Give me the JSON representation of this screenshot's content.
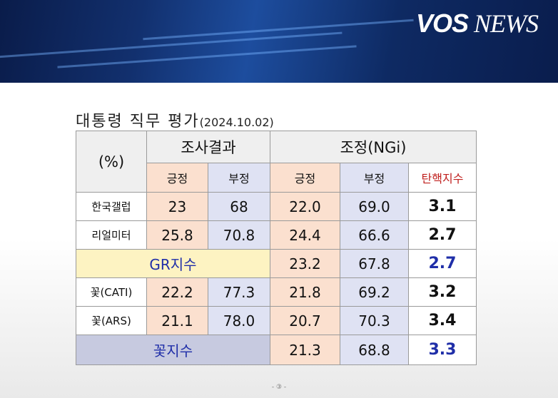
{
  "header": {
    "logo_bold": "VOS",
    "logo_rest": "NEWS"
  },
  "title": {
    "main": "대통령 직무 평가",
    "date": "(2024.10.02)"
  },
  "table": {
    "corner": "(%)",
    "groups": [
      "조사결과",
      "조정(NGi)"
    ],
    "subheaders": [
      "긍정",
      "부정",
      "긍정",
      "부정",
      "탄핵지수"
    ],
    "rows": [
      {
        "label": "한국갤럽",
        "values": [
          "23",
          "68",
          "22.0",
          "69.0",
          "3.1"
        ]
      },
      {
        "label": "리얼미터",
        "values": [
          "25.8",
          "70.8",
          "24.4",
          "66.6",
          "2.7"
        ]
      },
      {
        "label": "GR지수",
        "values": [
          "23.2",
          "67.8",
          "2.7"
        ]
      },
      {
        "label": "꽃(CATI)",
        "values": [
          "22.2",
          "77.3",
          "21.8",
          "69.2",
          "3.2"
        ]
      },
      {
        "label": "꽃(ARS)",
        "values": [
          "21.1",
          "78.0",
          "20.7",
          "70.3",
          "3.4"
        ]
      },
      {
        "label": "꽃지수",
        "values": [
          "21.3",
          "68.8",
          "3.3"
        ]
      }
    ]
  },
  "footer": "- ③ -"
}
